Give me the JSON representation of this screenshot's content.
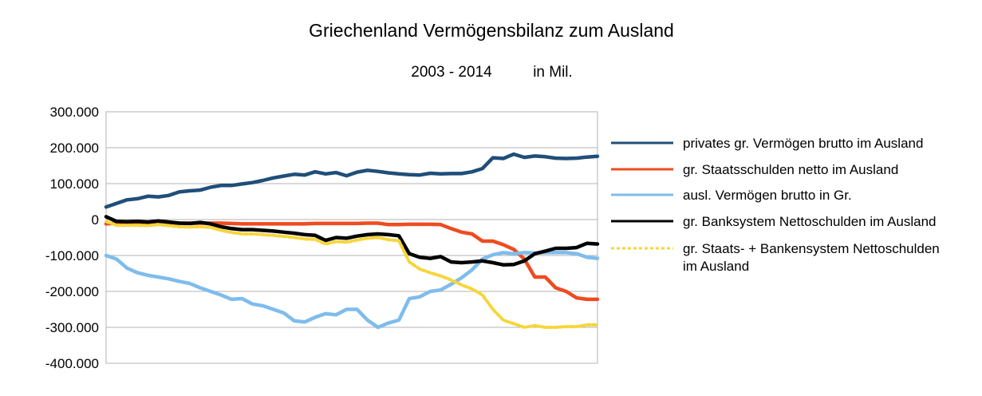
{
  "chart_data": {
    "type": "line",
    "title": "Griechenland Vermögensbilanz zum Ausland",
    "subtitle_period": "2003 - 2014",
    "subtitle_unit": "in Mil.",
    "xlabel": "",
    "ylabel": "",
    "ylim": [
      -400000,
      300000
    ],
    "y_ticks": [
      300000,
      200000,
      100000,
      0,
      -100000,
      -200000,
      -300000,
      -400000
    ],
    "y_tick_labels": [
      "300.000",
      "200.000",
      "100.000",
      "0",
      "-100.000",
      "-200.000",
      "-300.000",
      "-400.000"
    ],
    "grid": "horizontal",
    "legend_position": "right",
    "x_count": 48,
    "series": [
      {
        "name": "privates gr. Vermögen brutto im Ausland",
        "color": "#1f4e79",
        "dashed": false,
        "values": [
          35000,
          45000,
          55000,
          58000,
          65000,
          63000,
          67000,
          77000,
          80000,
          82000,
          90000,
          95000,
          95000,
          99000,
          103000,
          109000,
          116000,
          121000,
          126000,
          124000,
          133000,
          127000,
          131000,
          122000,
          132000,
          137000,
          134000,
          130000,
          127000,
          125000,
          124000,
          129000,
          127000,
          128000,
          128000,
          133000,
          142000,
          172000,
          170000,
          182000,
          173000,
          177000,
          175000,
          171000,
          170000,
          171000,
          174000,
          176000
        ]
      },
      {
        "name": "gr. Staatsschulden netto im Ausland",
        "color": "#ee4c21",
        "dashed": false,
        "values": [
          -12000,
          -10000,
          -10000,
          -10000,
          -10000,
          -11000,
          -10000,
          -10000,
          -10000,
          -10000,
          -10000,
          -10000,
          -11000,
          -12000,
          -12000,
          -12000,
          -12000,
          -12000,
          -12000,
          -12000,
          -11000,
          -11000,
          -11000,
          -11000,
          -11000,
          -10000,
          -10000,
          -14000,
          -14000,
          -13000,
          -13000,
          -13000,
          -14000,
          -25000,
          -35000,
          -40000,
          -60000,
          -60000,
          -70000,
          -83000,
          -110000,
          -160000,
          -160000,
          -190000,
          -200000,
          -218000,
          -222000,
          -222000
        ]
      },
      {
        "name": "ausl. Vermögen brutto in Gr.",
        "color": "#7fbcec",
        "dashed": false,
        "values": [
          -100000,
          -110000,
          -135000,
          -148000,
          -155000,
          -160000,
          -165000,
          -172000,
          -178000,
          -190000,
          -200000,
          -210000,
          -222000,
          -220000,
          -235000,
          -240000,
          -250000,
          -260000,
          -282000,
          -285000,
          -272000,
          -262000,
          -265000,
          -250000,
          -250000,
          -280000,
          -300000,
          -288000,
          -280000,
          -220000,
          -215000,
          -200000,
          -196000,
          -180000,
          -162000,
          -140000,
          -110000,
          -98000,
          -92000,
          -95000,
          -92000,
          -93000,
          -92000,
          -92000,
          -92000,
          -95000,
          -105000,
          -108000
        ]
      },
      {
        "name": "gr. Banksystem Nettoschulden im Ausland",
        "color": "#000000",
        "dashed": false,
        "values": [
          8000,
          -5000,
          -6000,
          -5000,
          -7000,
          -4000,
          -7000,
          -10000,
          -11000,
          -8000,
          -12000,
          -20000,
          -25000,
          -28000,
          -28000,
          -30000,
          -32000,
          -35000,
          -38000,
          -42000,
          -44000,
          -58000,
          -50000,
          -52000,
          -46000,
          -42000,
          -40000,
          -42000,
          -45000,
          -95000,
          -105000,
          -108000,
          -103000,
          -118000,
          -120000,
          -118000,
          -115000,
          -120000,
          -126000,
          -125000,
          -115000,
          -95000,
          -88000,
          -80000,
          -80000,
          -78000,
          -66000,
          -68000
        ]
      },
      {
        "name": "gr. Staats- + Bankensystem Nettoschulden im Ausland",
        "color": "#f7d53a",
        "dashed": true,
        "values": [
          -5000,
          -16000,
          -16000,
          -16000,
          -17000,
          -14000,
          -17000,
          -20000,
          -21000,
          -20000,
          -22000,
          -30000,
          -36000,
          -40000,
          -40000,
          -42000,
          -44000,
          -47000,
          -50000,
          -54000,
          -55000,
          -68000,
          -61000,
          -63000,
          -57000,
          -52000,
          -50000,
          -56000,
          -59000,
          -118000,
          -138000,
          -148000,
          -157000,
          -168000,
          -182000,
          -193000,
          -210000,
          -250000,
          -280000,
          -290000,
          -300000,
          -295000,
          -300000,
          -300000,
          -298000,
          -298000,
          -293000,
          -293000
        ]
      }
    ]
  }
}
